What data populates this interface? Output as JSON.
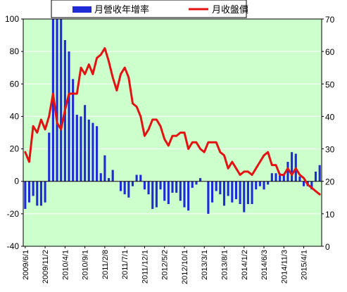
{
  "chart_data": {
    "type": "bar+line",
    "legend": [
      {
        "name": "月營收年增率",
        "color": "#1f2bd6",
        "kind": "bar"
      },
      {
        "name": "月收盤價",
        "color": "#e41212",
        "kind": "line"
      }
    ],
    "y_left": {
      "min": -40,
      "max": 100,
      "ticks": [
        -40,
        -20,
        0,
        20,
        40,
        60,
        80,
        100
      ]
    },
    "y_right": {
      "min": 0,
      "max": 70,
      "ticks": [
        0,
        10,
        20,
        30,
        40,
        50,
        60,
        70
      ]
    },
    "x_tick_labels": [
      "2009/6/1",
      "2009/11/2",
      "2010/4/1",
      "2010/9/1",
      "2011/2/8",
      "2011/7/1",
      "2011/12/1",
      "2012/5/2",
      "2012/10/1",
      "2013/3/1",
      "2013/8/1",
      "2014/1/2",
      "2014/6/3",
      "2014/11/3",
      "2015/4/1"
    ],
    "n_months": 75,
    "series": [
      {
        "name": "月營收年增率",
        "axis": "left",
        "values": [
          -17,
          -13,
          -9,
          -15,
          -15,
          -13,
          30,
          100,
          100,
          100,
          87,
          80,
          63,
          41,
          40,
          47,
          38,
          36,
          34,
          5,
          16,
          2,
          7,
          0,
          -6,
          -8,
          -10,
          -3,
          4,
          4,
          -5,
          -8,
          -17,
          -16,
          -5,
          -12,
          -14,
          -7,
          -7,
          -12,
          -16,
          -18,
          -4,
          -2,
          2,
          0,
          -20,
          -13,
          -6,
          -8,
          -15,
          -9,
          -13,
          -11,
          -14,
          -19,
          -14,
          -14,
          -5,
          -3,
          -5,
          -2,
          5,
          5,
          5,
          4,
          12,
          18,
          17,
          3,
          -3,
          -3,
          -5,
          6,
          10
        ]
      },
      {
        "name": "月收盤價",
        "axis": "right",
        "values": [
          29,
          26,
          37,
          35,
          39,
          36,
          40,
          47,
          38,
          36,
          42,
          47,
          47,
          47,
          55,
          53,
          56,
          53,
          58,
          59,
          61,
          57,
          52,
          48,
          53,
          55,
          52,
          44,
          43,
          40,
          34,
          36,
          39,
          39,
          37,
          33,
          31,
          34,
          34,
          35,
          35,
          30,
          32,
          32,
          30,
          29,
          32,
          32,
          32,
          29,
          28,
          24,
          26,
          24,
          22,
          23,
          23,
          22,
          24,
          26,
          28,
          29,
          25,
          25,
          22,
          22,
          24,
          22,
          24,
          22,
          21,
          19,
          18,
          17,
          16
        ]
      }
    ]
  }
}
